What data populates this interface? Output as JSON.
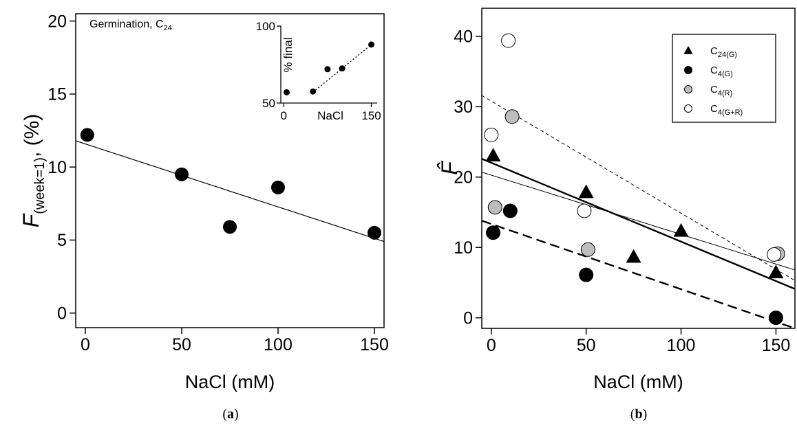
{
  "chart_data": [
    {
      "type": "scatter",
      "panel_label": "a",
      "title": "Germination, C",
      "title_sub": "24",
      "xlabel": "NaCl (mM)",
      "ylabel_main": "F",
      "ylabel_sub": "(week=1)",
      "ylabel_unit": ", (%)",
      "xlim": [
        -5,
        155
      ],
      "ylim": [
        -1,
        20.5
      ],
      "xticks": [
        0,
        50,
        100,
        150
      ],
      "yticks": [
        0,
        5,
        10,
        15,
        20
      ],
      "grid": false,
      "series": [
        {
          "x": [
            1,
            50,
            75,
            100,
            150
          ],
          "y": [
            12.2,
            9.5,
            5.9,
            8.6,
            5.5
          ]
        }
      ],
      "fit_line": {
        "x": [
          -5,
          155
        ],
        "y": [
          11.8,
          4.9
        ]
      },
      "inset": {
        "type": "scatter",
        "xlabel": "NaCl",
        "ylabel": "% final",
        "xlim": [
          -5,
          160
        ],
        "ylim": [
          50,
          100
        ],
        "xticks": [
          0,
          150
        ],
        "yticks": [
          50,
          100
        ],
        "series": [
          {
            "x": [
              5,
              50,
              75,
              100,
              150
            ],
            "y": [
              57,
              57.5,
              72,
              72.5,
              88
            ]
          }
        ],
        "fit_line": {
          "x": [
            50,
            150
          ],
          "y": [
            57,
            88
          ]
        }
      }
    },
    {
      "type": "scatter",
      "panel_label": "b",
      "xlabel": "NaCl (mM)",
      "ylabel": "F̂",
      "xlim": [
        -5,
        160
      ],
      "ylim": [
        -1.5,
        44
      ],
      "xticks": [
        0,
        50,
        100,
        150
      ],
      "yticks": [
        0,
        10,
        20,
        30,
        40
      ],
      "grid": false,
      "legend_position": "top-right",
      "series": [
        {
          "name": "C",
          "name_sub": "24(G)",
          "marker": "triangle",
          "color": "#000000",
          "x": [
            1,
            50,
            75,
            100,
            150
          ],
          "y": [
            23,
            17.8,
            8.6,
            12.3,
            6.4
          ],
          "fit": {
            "x": [
              -5,
              160
            ],
            "y": [
              22.6,
              4.1
            ],
            "style": "thick-solid"
          }
        },
        {
          "name": "C",
          "name_sub": "4(G)",
          "marker": "circle",
          "color": "#000000",
          "x": [
            1,
            10,
            50,
            150
          ],
          "y": [
            12.1,
            15.2,
            6.1,
            0
          ],
          "fit": {
            "x": [
              -5,
              160
            ],
            "y": [
              13.8,
              -1.5
            ],
            "style": "thick-dashed"
          }
        },
        {
          "name": "C",
          "name_sub": "4(R)",
          "marker": "circle",
          "color": "#bebebe",
          "x": [
            2,
            11,
            51,
            151
          ],
          "y": [
            15.7,
            28.6,
            9.7,
            9.1
          ],
          "fit": {
            "x": [
              -5,
              160
            ],
            "y": [
              31.6,
              5.3
            ],
            "style": "thin-dashed"
          }
        },
        {
          "name": "C",
          "name_sub": "4(G+R)",
          "marker": "circle",
          "color": "#ffffff",
          "x": [
            0,
            9,
            49,
            149
          ],
          "y": [
            26,
            39.4,
            15.2,
            9
          ],
          "fit": {
            "x": [
              -5,
              160
            ],
            "y": [
              20.7,
              6.8
            ],
            "style": "thin-solid"
          }
        }
      ]
    }
  ]
}
